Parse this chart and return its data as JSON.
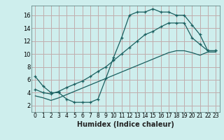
{
  "xlabel": "Humidex (Indice chaleur)",
  "bg_color": "#ceeeed",
  "grid_color": "#c0aeae",
  "line_color": "#1a6060",
  "xlim": [
    -0.5,
    23.5
  ],
  "ylim": [
    1.0,
    17.5
  ],
  "yticks": [
    2,
    4,
    6,
    8,
    10,
    12,
    14,
    16
  ],
  "xticks": [
    0,
    1,
    2,
    3,
    4,
    5,
    6,
    7,
    8,
    9,
    10,
    11,
    12,
    13,
    14,
    15,
    16,
    17,
    18,
    19,
    20,
    21,
    22,
    23
  ],
  "line1_x": [
    0,
    1,
    2,
    3,
    4,
    5,
    6,
    7,
    8,
    9,
    10,
    11,
    12,
    13,
    14,
    15,
    16,
    17,
    18,
    19,
    20,
    21,
    22,
    23
  ],
  "line1_y": [
    6.5,
    5.0,
    4.0,
    4.0,
    3.0,
    2.5,
    2.5,
    2.5,
    3.0,
    6.2,
    9.5,
    12.5,
    16.0,
    16.5,
    16.5,
    17.0,
    16.5,
    16.5,
    16.0,
    16.0,
    14.5,
    13.0,
    10.5,
    10.5
  ],
  "line2_x": [
    0,
    1,
    2,
    3,
    4,
    5,
    6,
    7,
    8,
    9,
    10,
    11,
    12,
    13,
    14,
    15,
    16,
    17,
    18,
    19,
    20,
    21,
    22,
    23
  ],
  "line2_y": [
    4.5,
    4.0,
    3.8,
    4.2,
    4.8,
    5.3,
    5.8,
    6.5,
    7.3,
    8.0,
    9.0,
    10.0,
    11.0,
    12.0,
    13.0,
    13.5,
    14.2,
    14.8,
    14.8,
    14.8,
    12.5,
    11.5,
    10.5,
    10.5
  ],
  "line3_x": [
    0,
    1,
    2,
    3,
    4,
    5,
    6,
    7,
    8,
    9,
    10,
    11,
    12,
    13,
    14,
    15,
    16,
    17,
    18,
    19,
    20,
    21,
    22,
    23
  ],
  "line3_y": [
    3.5,
    3.2,
    2.8,
    3.2,
    3.7,
    4.2,
    4.7,
    5.2,
    5.7,
    6.2,
    6.7,
    7.2,
    7.7,
    8.2,
    8.7,
    9.2,
    9.7,
    10.2,
    10.5,
    10.5,
    10.2,
    9.8,
    10.3,
    10.3
  ],
  "xlabel_fontsize": 7,
  "tick_fontsize": 5.5,
  "ytick_fontsize": 6
}
